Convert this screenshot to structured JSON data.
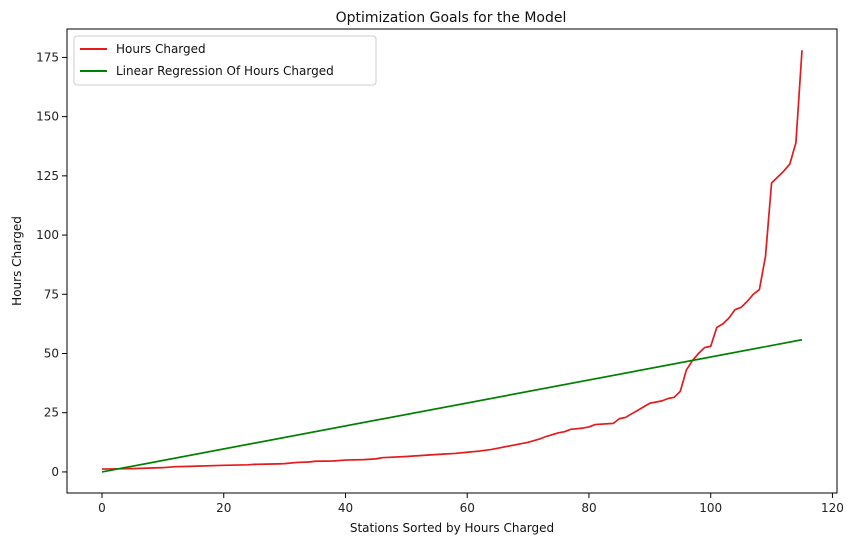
{
  "chart_data": {
    "type": "line",
    "title": "Optimization Goals for the Model",
    "xlabel": "Stations Sorted by Hours Charged",
    "ylabel": "Hours Charged",
    "xlim": [
      -5.75,
      120.75
    ],
    "ylim": [
      -8.9,
      187.0
    ],
    "xticks": [
      0,
      20,
      40,
      60,
      80,
      100,
      120
    ],
    "yticks": [
      0,
      25,
      50,
      75,
      100,
      125,
      150,
      175
    ],
    "grid": false,
    "legend": "top-left",
    "series": [
      {
        "name": "Hours Charged",
        "color": "#e41a1c",
        "points": [
          [
            0,
            1.2
          ],
          [
            5,
            1.4
          ],
          [
            10,
            1.8
          ],
          [
            12,
            2.2
          ],
          [
            15,
            2.4
          ],
          [
            20,
            2.8
          ],
          [
            24,
            3.0
          ],
          [
            25,
            3.2
          ],
          [
            29,
            3.4
          ],
          [
            30,
            3.5
          ],
          [
            32,
            4.0
          ],
          [
            34,
            4.2
          ],
          [
            35,
            4.5
          ],
          [
            38,
            4.6
          ],
          [
            40,
            5.0
          ],
          [
            43,
            5.2
          ],
          [
            45,
            5.5
          ],
          [
            46,
            6.0
          ],
          [
            50,
            6.5
          ],
          [
            54,
            7.2
          ],
          [
            56,
            7.5
          ],
          [
            58,
            7.8
          ],
          [
            60,
            8.3
          ],
          [
            62,
            8.8
          ],
          [
            64,
            9.5
          ],
          [
            66,
            10.5
          ],
          [
            68,
            11.5
          ],
          [
            70,
            12.5
          ],
          [
            72,
            14.0
          ],
          [
            73,
            15.0
          ],
          [
            75,
            16.5
          ],
          [
            76,
            17.0
          ],
          [
            77,
            18.0
          ],
          [
            79,
            18.5
          ],
          [
            80,
            19.0
          ],
          [
            81,
            20.0
          ],
          [
            84,
            20.5
          ],
          [
            85,
            22.5
          ],
          [
            86,
            23.0
          ],
          [
            88,
            26.0
          ],
          [
            90,
            29.0
          ],
          [
            92,
            30.0
          ],
          [
            93,
            31.0
          ],
          [
            94,
            31.5
          ],
          [
            95,
            34.0
          ],
          [
            96,
            43.0
          ],
          [
            97,
            47.0
          ],
          [
            98,
            50.0
          ],
          [
            99,
            52.5
          ],
          [
            100,
            53.0
          ],
          [
            101,
            61.0
          ],
          [
            102,
            62.5
          ],
          [
            103,
            65.0
          ],
          [
            104,
            68.5
          ],
          [
            105,
            69.5
          ],
          [
            106,
            72.0
          ],
          [
            107,
            75.0
          ],
          [
            108,
            77.0
          ],
          [
            109,
            91.0
          ],
          [
            110,
            122.0
          ],
          [
            112,
            127.0
          ],
          [
            113,
            130.0
          ],
          [
            114,
            139.0
          ],
          [
            115,
            178.0
          ]
        ]
      },
      {
        "name": "Linear Regression Of Hours Charged",
        "color": "#008000",
        "points": [
          [
            0,
            0
          ],
          [
            115,
            55.8
          ]
        ]
      }
    ]
  }
}
